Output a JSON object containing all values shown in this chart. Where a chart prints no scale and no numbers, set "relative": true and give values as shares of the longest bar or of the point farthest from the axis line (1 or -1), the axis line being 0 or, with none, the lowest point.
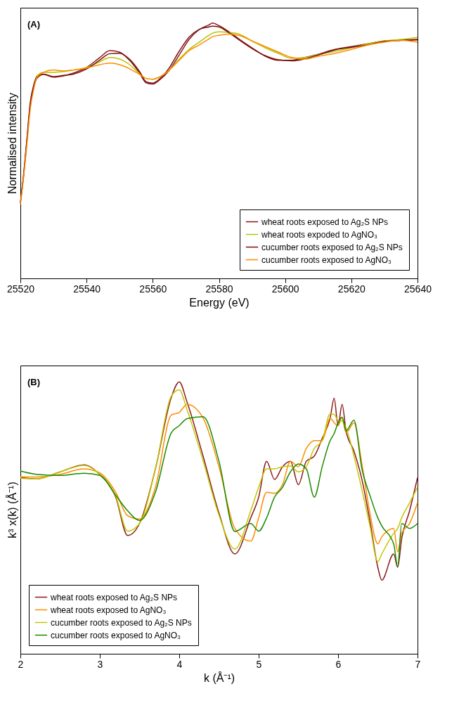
{
  "chart_data": [
    {
      "type": "line",
      "title": "(A)",
      "xlabel": "Energy (eV)",
      "ylabel": "Normalised intensity",
      "relative": true,
      "legend": "bottom right",
      "x": [
        25520,
        25521,
        25522,
        25523,
        25524,
        25525,
        25527,
        25530,
        25533,
        25536,
        25540,
        25544,
        25547,
        25550,
        25553,
        25556,
        25558,
        25560,
        25562,
        25565,
        25568,
        25571,
        25574,
        25577,
        25578,
        25580,
        25583,
        25586,
        25590,
        25594,
        25598,
        25602,
        25606,
        25610,
        25615,
        25620,
        25625,
        25630,
        25635,
        25640
      ],
      "xlim": [
        25520,
        25640
      ],
      "xticks": [
        25520,
        25540,
        25560,
        25580,
        25600,
        25620,
        25640
      ],
      "series": [
        {
          "name": "wheat roots exposed to Ag₂S NPs",
          "color": "#8b1a1a",
          "values": [
            0.295,
            0.405,
            0.542,
            0.679,
            0.747,
            0.783,
            0.799,
            0.788,
            0.793,
            0.804,
            0.826,
            0.865,
            0.892,
            0.886,
            0.854,
            0.804,
            0.766,
            0.761,
            0.777,
            0.815,
            0.875,
            0.936,
            0.974,
            0.993,
            1.0,
            0.99,
            0.966,
            0.938,
            0.903,
            0.87,
            0.854,
            0.854,
            0.865,
            0.878,
            0.897,
            0.908,
            0.919,
            0.93,
            0.933,
            0.936
          ]
        },
        {
          "name": "wheat roots expoded to AgNO₃",
          "color": "#b5c400",
          "values": [
            null,
            null,
            null,
            null,
            0.755,
            0.793,
            0.807,
            0.807,
            0.81,
            0.816,
            0.826,
            0.848,
            0.865,
            0.859,
            0.837,
            0.802,
            0.783,
            0.78,
            0.788,
            0.816,
            0.859,
            0.897,
            0.925,
            0.952,
            0.96,
            0.966,
            0.963,
            0.957,
            0.93,
            0.903,
            0.881,
            0.862,
            0.865,
            0.876,
            0.889,
            0.903,
            0.919,
            0.93,
            0.936,
            0.944
          ]
        },
        {
          "name": "cucumber roots exposed to Ag₂S NPs",
          "color": "#7a1010",
          "values": [
            0.295,
            0.41,
            0.55,
            0.69,
            0.755,
            0.79,
            0.8,
            0.79,
            0.795,
            0.8,
            0.82,
            0.855,
            0.88,
            0.882,
            0.858,
            0.81,
            0.77,
            0.765,
            0.78,
            0.825,
            0.89,
            0.945,
            0.975,
            0.985,
            0.988,
            0.985,
            0.962,
            0.935,
            0.9,
            0.872,
            0.856,
            0.852,
            0.86,
            0.875,
            0.895,
            0.905,
            0.915,
            0.928,
            0.932,
            0.934
          ]
        },
        {
          "name": "cucumber roots exposed to AgNO₃",
          "color": "#ff8c00",
          "values": [
            0.29,
            0.399,
            0.528,
            0.665,
            0.739,
            0.788,
            0.807,
            0.816,
            0.813,
            0.816,
            0.824,
            0.837,
            0.843,
            0.837,
            0.821,
            0.799,
            0.783,
            0.78,
            0.788,
            0.816,
            0.854,
            0.892,
            0.914,
            0.938,
            0.946,
            0.952,
            0.957,
            0.952,
            0.93,
            0.908,
            0.886,
            0.865,
            0.859,
            0.87,
            0.881,
            0.897,
            0.914,
            0.925,
            0.933,
            0.925
          ]
        }
      ]
    },
    {
      "type": "line",
      "title": "(B)",
      "xlabel": "k (Å⁻¹)",
      "ylabel": "k³ x(k) (Å⁻¹)",
      "relative": true,
      "legend": "bottom left",
      "x": [
        2.0,
        2.2,
        2.5,
        2.8,
        3.0,
        3.2,
        3.35,
        3.5,
        3.7,
        3.9,
        4.0,
        4.1,
        4.3,
        4.5,
        4.7,
        4.9,
        5.0,
        5.1,
        5.2,
        5.3,
        5.4,
        5.5,
        5.6,
        5.7,
        5.8,
        5.9,
        5.95,
        6.0,
        6.05,
        6.1,
        6.2,
        6.3,
        6.4,
        6.5,
        6.55,
        6.7,
        6.75,
        6.8,
        6.9,
        7.0
      ],
      "xlim": [
        2,
        7
      ],
      "xticks": [
        2,
        3,
        4,
        5,
        6,
        7
      ],
      "series": [
        {
          "name": "wheat roots exposed to Ag₂S NPs",
          "color": "#8b1a1a",
          "values": [
            0.648,
            0.643,
            0.669,
            0.695,
            0.659,
            0.576,
            0.435,
            0.479,
            0.68,
            0.943,
            1.0,
            0.924,
            0.727,
            0.518,
            0.367,
            0.5,
            0.576,
            0.708,
            0.641,
            0.688,
            0.708,
            0.622,
            0.708,
            0.727,
            0.792,
            0.867,
            0.94,
            0.839,
            0.917,
            0.82,
            0.745,
            0.641,
            0.49,
            0.318,
            0.271,
            0.367,
            0.318,
            0.422,
            0.526,
            0.648
          ]
        },
        {
          "name": "wheat roots exposed to AgNO₃",
          "color": "#ff8c00",
          "values": [
            0.651,
            0.65,
            0.66,
            0.68,
            0.665,
            0.594,
            0.508,
            0.495,
            0.612,
            0.878,
            0.888,
            0.917,
            0.867,
            0.688,
            0.461,
            0.414,
            0.5,
            0.594,
            0.59,
            0.622,
            0.708,
            0.688,
            0.755,
            0.784,
            0.784,
            0.867,
            0.85,
            0.839,
            0.87,
            0.813,
            0.849,
            0.698,
            0.518,
            0.404,
            0.43,
            0.461,
            0.375,
            0.443,
            0.479,
            0.555
          ]
        },
        {
          "name": "cucumber roots exposed to Ag₂S NPs",
          "color": "#c2c800",
          "values": [
            0.646,
            0.643,
            0.669,
            0.693,
            0.66,
            0.58,
            0.451,
            0.479,
            0.68,
            0.948,
            0.971,
            0.896,
            0.71,
            0.51,
            0.385,
            0.526,
            0.612,
            0.68,
            0.68,
            0.688,
            0.69,
            0.669,
            0.688,
            0.755,
            0.784,
            0.883,
            0.88,
            0.859,
            0.856,
            0.831,
            0.727,
            0.604,
            0.471,
            0.339,
            0.367,
            0.443,
            0.461,
            0.5,
            0.555,
            0.612
          ]
        },
        {
          "name": "cucumber roots exposed to AgNO₃",
          "color": "#1a8a00",
          "values": [
            0.672,
            0.66,
            0.656,
            0.664,
            0.656,
            0.583,
            0.526,
            0.49,
            0.594,
            0.813,
            0.839,
            0.865,
            0.872,
            0.708,
            0.45,
            0.479,
            0.451,
            0.5,
            0.576,
            0.612,
            0.669,
            0.698,
            0.68,
            0.576,
            0.688,
            0.784,
            0.81,
            0.849,
            0.87,
            0.82,
            0.859,
            0.68,
            0.583,
            0.5,
            0.47,
            0.404,
            0.32,
            0.479,
            0.461,
            0.479
          ]
        }
      ]
    }
  ]
}
